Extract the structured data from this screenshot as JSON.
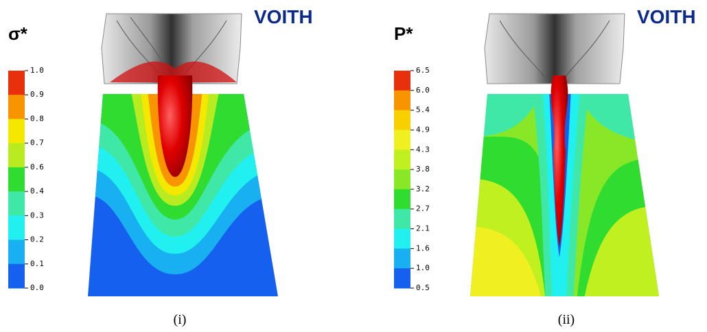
{
  "panels": [
    {
      "brand": "VOITH",
      "caption": "(i)",
      "colorbar": {
        "title": "σ*",
        "ticks": [
          "1.0",
          "0.9",
          "0.8",
          "0.7",
          "0.6",
          "0.4",
          "0.3",
          "0.2",
          "0.1",
          "0.0"
        ],
        "colors": [
          "#e8300c",
          "#f89400",
          "#f4e800",
          "#b8ec20",
          "#30dc30",
          "#40e8a8",
          "#20f0f0",
          "#18b0f0",
          "#1660f0"
        ]
      }
    },
    {
      "brand": "VOITH",
      "caption": "(ii)",
      "colorbar": {
        "title": "P*",
        "ticks": [
          "6.5",
          "6.0",
          "5.4",
          "4.9",
          "4.3",
          "3.8",
          "3.2",
          "2.7",
          "2.1",
          "1.6",
          "1.0",
          "0.5"
        ],
        "colors": [
          "#e8300c",
          "#f89400",
          "#f8d000",
          "#f0f020",
          "#c0f020",
          "#88e828",
          "#30dc30",
          "#40e8a8",
          "#20f0f0",
          "#18b0f0",
          "#1660f0"
        ]
      }
    }
  ]
}
